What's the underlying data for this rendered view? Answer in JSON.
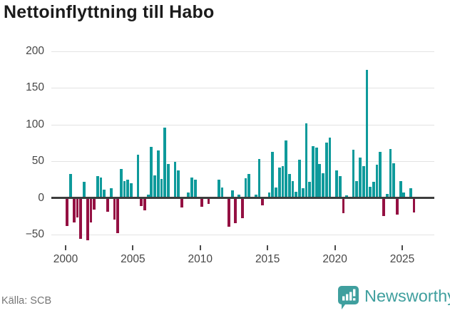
{
  "title": "Nettoinflyttning till Habo",
  "source": "Källa: SCB",
  "logo": {
    "text": "Newsworthy",
    "icon": "newsworthy-speech-bubble-barchart-icon"
  },
  "colors": {
    "positive_bar": "#0e9a9b",
    "negative_bar": "#941042",
    "gridline": "#e3e3e3",
    "zero_line": "#3d3d3d",
    "axis_text": "#474747",
    "title_text": "#1b1b1b",
    "source_text": "#767676",
    "logo_teal": "#3f9f9e"
  },
  "chart_data": {
    "type": "bar",
    "title": "Nettoinflyttning till Habo",
    "xlabel": "",
    "ylabel": "",
    "y_ticks": [
      200,
      150,
      100,
      50,
      0,
      -50
    ],
    "ylim": [
      -72,
      212
    ],
    "x_tick_labels": [
      "2000",
      "2005",
      "2010",
      "2015",
      "2020",
      "2025"
    ],
    "x_tick_years": [
      2000,
      2005,
      2010,
      2015,
      2020,
      2025
    ],
    "grid": "horizontal",
    "legend_position": "none",
    "period": "quarterly",
    "start_quarter": "2000Q1",
    "end_quarter": "2025Q4",
    "note_zero_values": "quarters with value 0 show no visible bar",
    "series": [
      {
        "name": "Nettoinflyttning",
        "values": [
          -38,
          33,
          -34,
          -27,
          -56,
          22,
          -58,
          -34,
          -16,
          30,
          28,
          11,
          -19,
          13,
          -30,
          -48,
          39,
          23,
          25,
          20,
          0,
          59,
          -11,
          -17,
          4,
          70,
          31,
          65,
          26,
          96,
          46,
          0,
          49,
          37,
          -13,
          0,
          7,
          28,
          25,
          0,
          -12,
          0,
          -8,
          0,
          0,
          25,
          14,
          0,
          -39,
          10,
          -35,
          4,
          -28,
          27,
          33,
          0,
          4,
          53,
          -10,
          0,
          7,
          63,
          14,
          41,
          43,
          78,
          33,
          23,
          8,
          52,
          13,
          102,
          22,
          71,
          69,
          46,
          34,
          75,
          82,
          0,
          37,
          30,
          -21,
          3,
          0,
          66,
          23,
          55,
          43,
          175,
          15,
          22,
          45,
          63,
          -25,
          5,
          67,
          47,
          -23,
          23,
          7,
          0,
          13,
          -20
        ]
      }
    ]
  }
}
